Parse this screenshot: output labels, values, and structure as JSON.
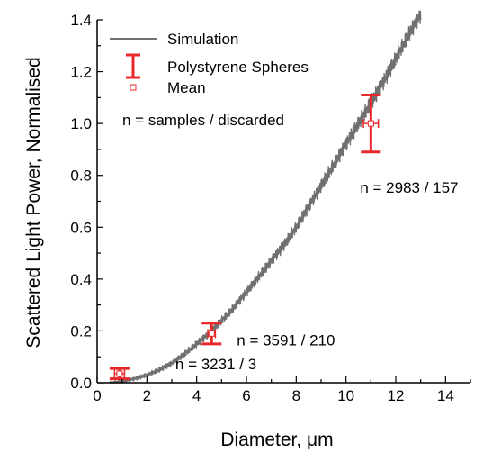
{
  "chart_data": {
    "type": "line",
    "xlabel": "Diameter, μm",
    "ylabel": "Scattered Light Power, Normalised",
    "xlim": [
      0,
      15
    ],
    "ylim": [
      0,
      1.4
    ],
    "x_ticks": [
      "0",
      "2",
      "4",
      "6",
      "8",
      "10",
      "12",
      "14"
    ],
    "y_ticks": [
      "0.0",
      "0.2",
      "0.4",
      "0.6",
      "0.8",
      "1.0",
      "1.2",
      "1.4"
    ],
    "grid": false,
    "legend": {
      "placement": "top-left",
      "entries": [
        {
          "label": "Simulation",
          "marker": "line",
          "color": "#707070"
        },
        {
          "label": "Polystyrene Spheres",
          "marker": "errorbar",
          "color": "#e8282b"
        },
        {
          "label": "Mean",
          "marker": "open-square",
          "color": "#e8282b"
        }
      ]
    },
    "note": "n = samples / discarded",
    "series": [
      {
        "name": "Simulation",
        "style": "noisy-line",
        "color": "#707070",
        "x": [
          0.5,
          1.0,
          1.5,
          2.0,
          2.5,
          3.0,
          3.5,
          4.0,
          4.5,
          5.0,
          5.5,
          6.0,
          6.5,
          7.0,
          7.5,
          8.0,
          8.5,
          9.0,
          9.5,
          10.0,
          10.5,
          11.0,
          11.5,
          12.0,
          12.5,
          13.0
        ],
        "y": [
          0.0,
          0.005,
          0.015,
          0.03,
          0.05,
          0.075,
          0.11,
          0.15,
          0.19,
          0.24,
          0.29,
          0.35,
          0.41,
          0.47,
          0.53,
          0.6,
          0.68,
          0.76,
          0.84,
          0.92,
          1.0,
          1.08,
          1.16,
          1.25,
          1.34,
          1.42
        ]
      },
      {
        "name": "Polystyrene Spheres",
        "color": "#e8282b",
        "points": [
          {
            "x": 0.9,
            "y": 0.035,
            "xerr": 0.2,
            "yerr": 0.02,
            "label": "n = 3231 / 3"
          },
          {
            "x": 4.6,
            "y": 0.19,
            "xerr": 0.15,
            "yerr": 0.04,
            "label": "n = 3591 / 210"
          },
          {
            "x": 11.0,
            "y": 1.0,
            "xerr": 0.3,
            "yerr": 0.11,
            "label": "n = 2983 / 157"
          }
        ]
      }
    ]
  }
}
